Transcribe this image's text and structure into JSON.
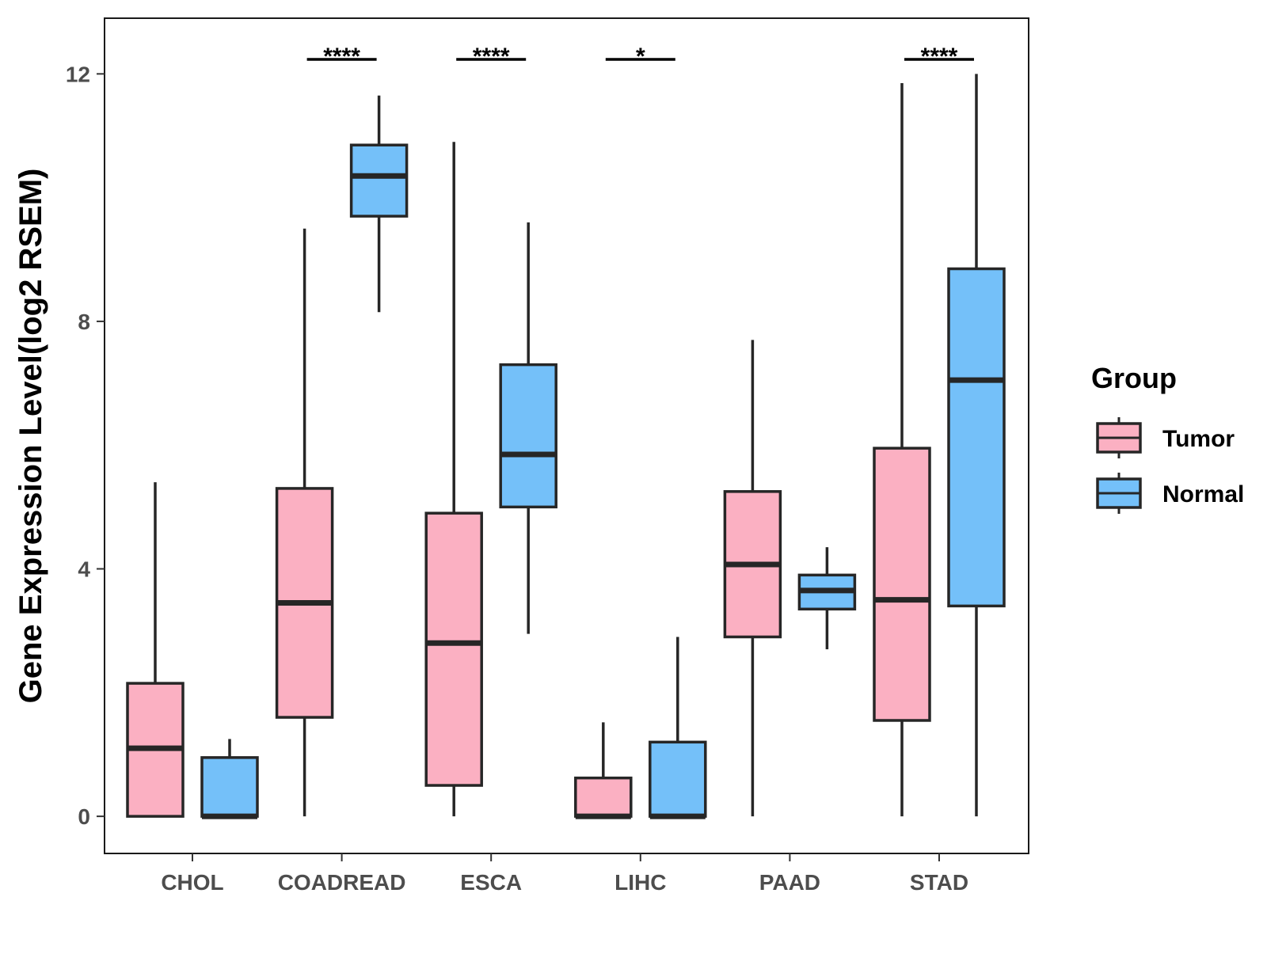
{
  "chart_data": {
    "type": "boxplot",
    "title": "",
    "xlabel": "",
    "ylabel": "Gene Expression Level(log2 RSEM)",
    "ylim": [
      -0.6,
      12.9
    ],
    "yticks": [
      "0",
      "4",
      "8",
      "12"
    ],
    "ytick_values": [
      0,
      4,
      8,
      12
    ],
    "categories": [
      "CHOL",
      "COADREAD",
      "ESCA",
      "LIHC",
      "PAAD",
      "STAD"
    ],
    "legend": {
      "title": "Group",
      "position": "right",
      "entries": [
        {
          "name": "Tumor",
          "color": "#FBB0C2"
        },
        {
          "name": "Normal",
          "color": "#74C0F9"
        }
      ]
    },
    "series": [
      {
        "name": "Tumor",
        "color": "#FBB0C2",
        "boxes": [
          {
            "category": "CHOL",
            "min": 0,
            "q1": 0,
            "median": 1.1,
            "q3": 2.15,
            "max": 5.4
          },
          {
            "category": "COADREAD",
            "min": 0,
            "q1": 1.6,
            "median": 3.45,
            "q3": 5.3,
            "max": 9.5
          },
          {
            "category": "ESCA",
            "min": 0,
            "q1": 0.5,
            "median": 2.8,
            "q3": 4.9,
            "max": 10.9
          },
          {
            "category": "LIHC",
            "min": 0,
            "q1": 0,
            "median": 0,
            "q3": 0.62,
            "max": 1.52
          },
          {
            "category": "PAAD",
            "min": 0,
            "q1": 2.9,
            "median": 4.07,
            "q3": 5.25,
            "max": 7.7
          },
          {
            "category": "STAD",
            "min": 0,
            "q1": 1.55,
            "median": 3.5,
            "q3": 5.95,
            "max": 11.85
          }
        ]
      },
      {
        "name": "Normal",
        "color": "#74C0F9",
        "boxes": [
          {
            "category": "CHOL",
            "min": 0,
            "q1": 0,
            "median": 0,
            "q3": 0.95,
            "max": 1.25
          },
          {
            "category": "COADREAD",
            "min": 8.15,
            "q1": 9.7,
            "median": 10.35,
            "q3": 10.85,
            "max": 11.65
          },
          {
            "category": "ESCA",
            "min": 2.95,
            "q1": 5.0,
            "median": 5.85,
            "q3": 7.3,
            "max": 9.6
          },
          {
            "category": "LIHC",
            "min": 0,
            "q1": 0,
            "median": 0,
            "q3": 1.2,
            "max": 2.9
          },
          {
            "category": "PAAD",
            "min": 2.7,
            "q1": 3.35,
            "median": 3.65,
            "q3": 3.9,
            "max": 4.35
          },
          {
            "category": "STAD",
            "min": 0,
            "q1": 3.4,
            "median": 7.05,
            "q3": 8.85,
            "max": 12.0
          }
        ]
      }
    ],
    "significance": [
      {
        "category": "COADREAD",
        "label": "****"
      },
      {
        "category": "ESCA",
        "label": "****"
      },
      {
        "category": "LIHC",
        "label": "*"
      },
      {
        "category": "STAD",
        "label": "****"
      }
    ]
  }
}
